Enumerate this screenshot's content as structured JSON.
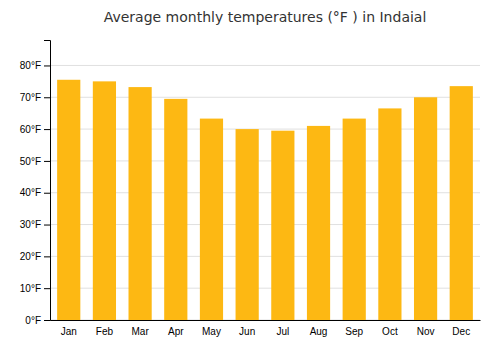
{
  "chart_data": {
    "type": "bar",
    "title": "Average monthly temperatures (°F ) in Indaial",
    "categories": [
      "Jan",
      "Feb",
      "Mar",
      "Apr",
      "May",
      "Jun",
      "Jul",
      "Aug",
      "Sep",
      "Oct",
      "Nov",
      "Dec"
    ],
    "values": [
      75.5,
      75.0,
      73.2,
      69.5,
      63.3,
      60.0,
      59.5,
      61.0,
      63.3,
      66.5,
      70.0,
      73.5
    ],
    "color": "#FDB813",
    "ylim": [
      0,
      88
    ],
    "yticks": [
      {
        "value": 0,
        "label": "0°F"
      },
      {
        "value": 10,
        "label": "10°F"
      },
      {
        "value": 20,
        "label": "20°F"
      },
      {
        "value": 30,
        "label": "30°F"
      },
      {
        "value": 40,
        "label": "40°F"
      },
      {
        "value": 50,
        "label": "50°F"
      },
      {
        "value": 60,
        "label": "60°F"
      },
      {
        "value": 70,
        "label": "70°F"
      },
      {
        "value": 80,
        "label": "80°F"
      }
    ],
    "grid": true
  }
}
